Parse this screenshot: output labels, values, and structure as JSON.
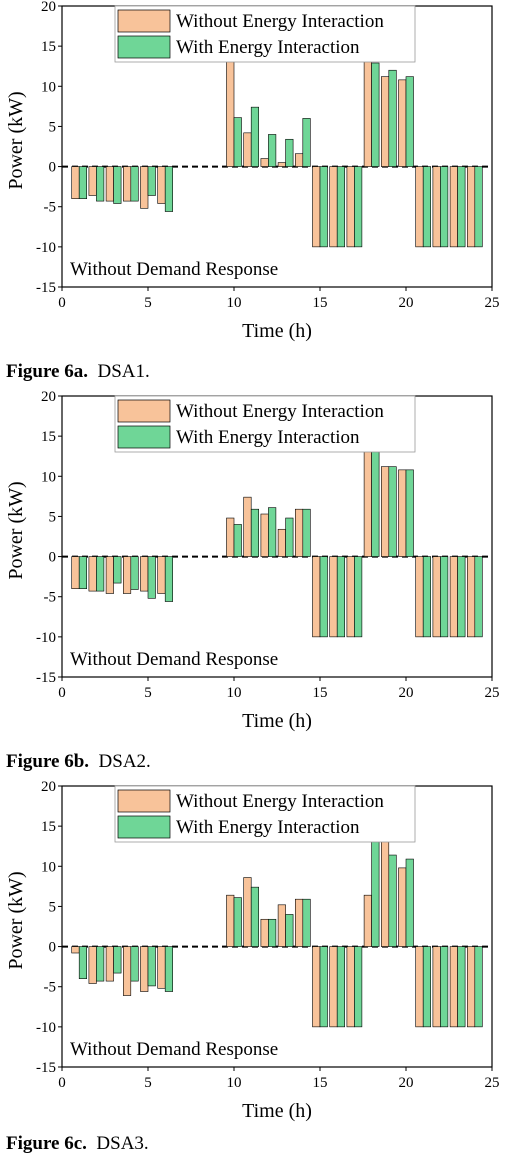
{
  "chart_data": [
    {
      "type": "bar",
      "title": "",
      "xlabel": "Time (h)",
      "ylabel": "Power (kW)",
      "xlim": [
        0,
        25
      ],
      "ylim": [
        -15,
        20
      ],
      "xticks": [
        0,
        5,
        10,
        15,
        20,
        25
      ],
      "yticks": [
        -15,
        -10,
        -5,
        0,
        5,
        10,
        15,
        20
      ],
      "zero_line": "dashed",
      "legend_position": "top-center",
      "annotation": "Without Demand Response",
      "colors": {
        "without": "#f8c39a",
        "with": "#6fd697"
      },
      "x": [
        1,
        2,
        3,
        4,
        5,
        6,
        10,
        11,
        12,
        13,
        14,
        15,
        16,
        17,
        18,
        19,
        20,
        21,
        22,
        23,
        24
      ],
      "series": [
        {
          "name": "Without Energy Interaction",
          "values": [
            -4,
            -3.6,
            -4.3,
            -4.3,
            -5.2,
            -4.6,
            20,
            4.2,
            1.0,
            0.5,
            1.6,
            -10,
            -10,
            -10,
            14,
            11.2,
            10.8,
            -10,
            -10,
            -10,
            -10
          ]
        },
        {
          "name": "With Energy Interaction",
          "values": [
            -4,
            -4.3,
            -4.6,
            -4.3,
            -3.6,
            -5.6,
            6.1,
            7.4,
            4.0,
            3.4,
            6.0,
            -10,
            -10,
            -10,
            12.9,
            12.0,
            11.2,
            -10,
            -10,
            -10,
            -10
          ]
        }
      ]
    },
    {
      "type": "bar",
      "title": "",
      "xlabel": "Time (h)",
      "ylabel": "Power (kW)",
      "xlim": [
        0,
        25
      ],
      "ylim": [
        -15,
        20
      ],
      "xticks": [
        0,
        5,
        10,
        15,
        20,
        25
      ],
      "yticks": [
        -15,
        -10,
        -5,
        0,
        5,
        10,
        15,
        20
      ],
      "zero_line": "dashed",
      "legend_position": "top-center",
      "annotation": "Without Demand Response",
      "colors": {
        "without": "#f8c39a",
        "with": "#6fd697"
      },
      "x": [
        1,
        2,
        3,
        4,
        5,
        6,
        10,
        11,
        12,
        13,
        14,
        15,
        16,
        17,
        18,
        19,
        20,
        21,
        22,
        23,
        24
      ],
      "series": [
        {
          "name": "Without Energy Interaction",
          "values": [
            -4,
            -4.3,
            -4.6,
            -4.6,
            -4.3,
            -4.6,
            4.8,
            7.4,
            5.3,
            3.4,
            5.9,
            -10,
            -10,
            -10,
            14,
            11.2,
            10.8,
            -10,
            -10,
            -10,
            -10
          ]
        },
        {
          "name": "With Energy Interaction",
          "values": [
            -4,
            -4.3,
            -3.3,
            -4.1,
            -5.2,
            -5.6,
            4.0,
            5.9,
            6.1,
            4.8,
            5.9,
            -10,
            -10,
            -10,
            13.9,
            11.2,
            10.8,
            -10,
            -10,
            -10,
            -10
          ]
        }
      ]
    },
    {
      "type": "bar",
      "title": "",
      "xlabel": "Time (h)",
      "ylabel": "Power (kW)",
      "xlim": [
        0,
        25
      ],
      "ylim": [
        -15,
        20
      ],
      "xticks": [
        0,
        5,
        10,
        15,
        20,
        25
      ],
      "yticks": [
        -15,
        -10,
        -5,
        0,
        5,
        10,
        15,
        20
      ],
      "zero_line": "dashed",
      "legend_position": "top-center",
      "annotation": "Without Demand Response",
      "colors": {
        "without": "#f8c39a",
        "with": "#6fd697"
      },
      "x": [
        1,
        2,
        3,
        4,
        5,
        6,
        10,
        11,
        12,
        13,
        14,
        15,
        16,
        17,
        18,
        19,
        20,
        21,
        22,
        23,
        24
      ],
      "series": [
        {
          "name": "Without Energy Interaction",
          "values": [
            -0.8,
            -4.6,
            -4.3,
            -6.1,
            -5.6,
            -5.2,
            6.4,
            8.6,
            3.4,
            5.2,
            5.9,
            -10,
            -10,
            -10,
            6.4,
            17.1,
            9.8,
            -10,
            -10,
            -10,
            -10
          ]
        },
        {
          "name": "With Energy Interaction",
          "values": [
            -4,
            -4.3,
            -3.3,
            -4.3,
            -4.9,
            -5.6,
            6.1,
            7.4,
            3.4,
            4.0,
            5.9,
            -10,
            -10,
            -10,
            13.6,
            11.4,
            10.9,
            -10,
            -10,
            -10,
            -10
          ]
        }
      ]
    }
  ],
  "captions": [
    {
      "label": "Figure 6a.",
      "text": "DSA1."
    },
    {
      "label": "Figure 6b.",
      "text": "DSA2."
    },
    {
      "label": "Figure 6c.",
      "text": "DSA3."
    }
  ]
}
